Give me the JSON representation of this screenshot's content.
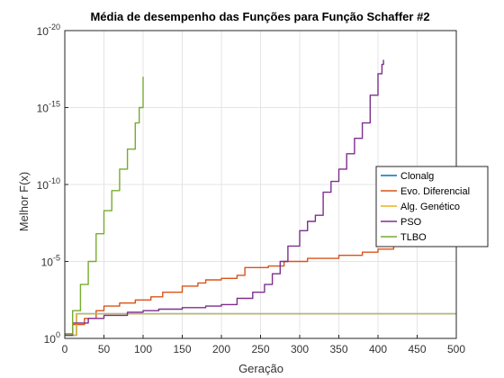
{
  "chart_data": {
    "type": "line",
    "title": "Média de desempenho das Funções para Função Schaffer #2",
    "xlabel": "Geração",
    "ylabel": "Melhor F(x)",
    "xlim": [
      0,
      500
    ],
    "ylim_exponent": [
      -20,
      0
    ],
    "yscale": "log",
    "grid": true,
    "legend_position": "right",
    "x_ticks": [
      0,
      50,
      100,
      150,
      200,
      250,
      300,
      350,
      400,
      450,
      500
    ],
    "y_ticks": [
      {
        "base": "10",
        "exp": "0",
        "value_exp": 0
      },
      {
        "base": "10",
        "exp": "-5",
        "value_exp": -5
      },
      {
        "base": "10",
        "exp": "-10",
        "value_exp": -10
      },
      {
        "base": "10",
        "exp": "-15",
        "value_exp": -15
      },
      {
        "base": "10",
        "exp": "-20",
        "value_exp": -20
      }
    ],
    "series": [
      {
        "name": "Clonalg",
        "color": "#0072BD",
        "points": [
          [
            0,
            -0.2
          ],
          [
            15,
            -1.6
          ],
          [
            500,
            -1.6
          ]
        ]
      },
      {
        "name": "Evo. Diferencial",
        "color": "#D95319",
        "points": [
          [
            0,
            -0.3
          ],
          [
            10,
            -0.9
          ],
          [
            25,
            -1.3
          ],
          [
            40,
            -1.8
          ],
          [
            50,
            -2.1
          ],
          [
            70,
            -2.3
          ],
          [
            90,
            -2.5
          ],
          [
            110,
            -2.7
          ],
          [
            125,
            -3.0
          ],
          [
            150,
            -3.4
          ],
          [
            170,
            -3.6
          ],
          [
            180,
            -3.8
          ],
          [
            200,
            -3.9
          ],
          [
            220,
            -4.1
          ],
          [
            230,
            -4.6
          ],
          [
            260,
            -4.7
          ],
          [
            280,
            -5.0
          ],
          [
            310,
            -5.2
          ],
          [
            350,
            -5.4
          ],
          [
            380,
            -5.6
          ],
          [
            400,
            -5.8
          ],
          [
            420,
            -6.0
          ],
          [
            440,
            -6.2
          ],
          [
            460,
            -6.5
          ],
          [
            490,
            -6.8
          ],
          [
            500,
            -7.2
          ]
        ]
      },
      {
        "name": "Alg. Genético",
        "color": "#EDB120",
        "points": [
          [
            0,
            -0.2
          ],
          [
            15,
            -1.6
          ],
          [
            500,
            -1.6
          ]
        ]
      },
      {
        "name": "PSO",
        "color": "#7E2F8E",
        "points": [
          [
            0,
            -0.2
          ],
          [
            10,
            -1.0
          ],
          [
            30,
            -1.3
          ],
          [
            50,
            -1.5
          ],
          [
            80,
            -1.7
          ],
          [
            100,
            -1.8
          ],
          [
            120,
            -1.9
          ],
          [
            150,
            -2.0
          ],
          [
            180,
            -2.1
          ],
          [
            200,
            -2.2
          ],
          [
            220,
            -2.6
          ],
          [
            240,
            -3.0
          ],
          [
            255,
            -3.5
          ],
          [
            265,
            -4.2
          ],
          [
            275,
            -5.0
          ],
          [
            285,
            -6.0
          ],
          [
            300,
            -7.0
          ],
          [
            310,
            -7.6
          ],
          [
            320,
            -8.0
          ],
          [
            330,
            -9.5
          ],
          [
            340,
            -10.2
          ],
          [
            350,
            -11.0
          ],
          [
            360,
            -12.0
          ],
          [
            370,
            -13.0
          ],
          [
            380,
            -14.0
          ],
          [
            390,
            -15.8
          ],
          [
            400,
            -17.2
          ],
          [
            405,
            -17.8
          ],
          [
            407,
            -18.1
          ]
        ]
      },
      {
        "name": "TLBO",
        "color": "#77AC30",
        "points": [
          [
            0,
            -0.3
          ],
          [
            10,
            -1.8
          ],
          [
            20,
            -3.5
          ],
          [
            30,
            -5.0
          ],
          [
            40,
            -6.8
          ],
          [
            50,
            -8.3
          ],
          [
            60,
            -9.6
          ],
          [
            70,
            -11.0
          ],
          [
            80,
            -12.3
          ],
          [
            90,
            -14.0
          ],
          [
            95,
            -15.0
          ],
          [
            100,
            -17.0
          ]
        ]
      }
    ]
  }
}
